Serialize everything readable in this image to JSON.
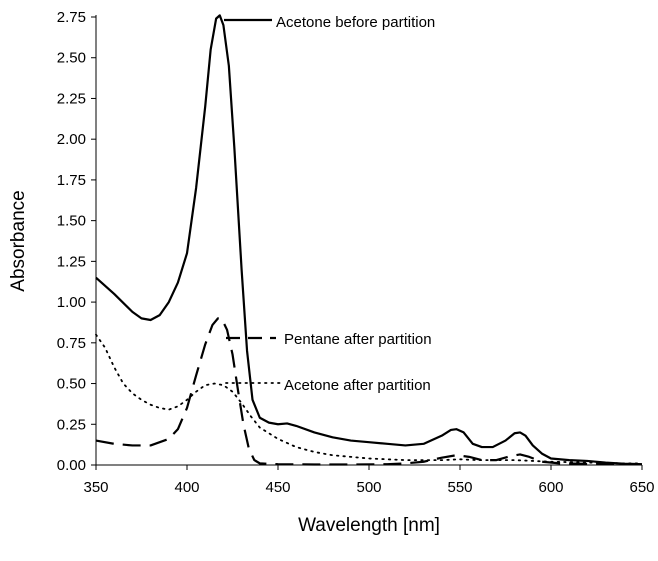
{
  "chart_data": {
    "type": "line",
    "xlabel": "Wavelength [nm]",
    "ylabel": "Absorbance",
    "xlim": [
      350,
      650
    ],
    "ylim": [
      0,
      2.75
    ],
    "x_ticks": [
      "350",
      "400",
      "450",
      "500",
      "550",
      "600",
      "650"
    ],
    "y_ticks": [
      "0.00",
      "0.25",
      "0.50",
      "0.75",
      "1.00",
      "1.25",
      "1.50",
      "1.75",
      "2.00",
      "2.25",
      "2.50",
      "2.75"
    ],
    "grid": false,
    "legend": "inline labels with leader lines",
    "series": [
      {
        "name": "Acetone before partition",
        "style": "solid",
        "color": "#000000",
        "points": [
          [
            350,
            1.15
          ],
          [
            360,
            1.05
          ],
          [
            370,
            0.94
          ],
          [
            375,
            0.9
          ],
          [
            380,
            0.89
          ],
          [
            385,
            0.92
          ],
          [
            390,
            1.0
          ],
          [
            395,
            1.12
          ],
          [
            400,
            1.3
          ],
          [
            405,
            1.7
          ],
          [
            410,
            2.2
          ],
          [
            413,
            2.55
          ],
          [
            416,
            2.74
          ],
          [
            418,
            2.76
          ],
          [
            420,
            2.7
          ],
          [
            423,
            2.45
          ],
          [
            426,
            1.95
          ],
          [
            430,
            1.2
          ],
          [
            433,
            0.7
          ],
          [
            436,
            0.4
          ],
          [
            440,
            0.29
          ],
          [
            445,
            0.26
          ],
          [
            450,
            0.25
          ],
          [
            455,
            0.255
          ],
          [
            460,
            0.24
          ],
          [
            470,
            0.2
          ],
          [
            480,
            0.17
          ],
          [
            490,
            0.15
          ],
          [
            500,
            0.14
          ],
          [
            510,
            0.13
          ],
          [
            520,
            0.12
          ],
          [
            530,
            0.13
          ],
          [
            540,
            0.18
          ],
          [
            545,
            0.215
          ],
          [
            548,
            0.22
          ],
          [
            552,
            0.2
          ],
          [
            557,
            0.13
          ],
          [
            562,
            0.11
          ],
          [
            568,
            0.11
          ],
          [
            575,
            0.15
          ],
          [
            580,
            0.195
          ],
          [
            583,
            0.2
          ],
          [
            586,
            0.18
          ],
          [
            590,
            0.12
          ],
          [
            595,
            0.07
          ],
          [
            600,
            0.04
          ],
          [
            610,
            0.03
          ],
          [
            620,
            0.025
          ],
          [
            630,
            0.015
          ],
          [
            640,
            0.008
          ],
          [
            650,
            0.005
          ]
        ]
      },
      {
        "name": "Pentane after partition",
        "style": "dashed",
        "color": "#000000",
        "points": [
          [
            350,
            0.15
          ],
          [
            360,
            0.13
          ],
          [
            370,
            0.12
          ],
          [
            380,
            0.12
          ],
          [
            390,
            0.16
          ],
          [
            395,
            0.22
          ],
          [
            400,
            0.35
          ],
          [
            405,
            0.55
          ],
          [
            410,
            0.74
          ],
          [
            414,
            0.86
          ],
          [
            417,
            0.9
          ],
          [
            419,
            0.9
          ],
          [
            422,
            0.83
          ],
          [
            425,
            0.68
          ],
          [
            428,
            0.46
          ],
          [
            431,
            0.25
          ],
          [
            434,
            0.1
          ],
          [
            437,
            0.03
          ],
          [
            440,
            0.01
          ],
          [
            450,
            0.005
          ],
          [
            470,
            0.003
          ],
          [
            490,
            0.003
          ],
          [
            510,
            0.005
          ],
          [
            520,
            0.01
          ],
          [
            530,
            0.02
          ],
          [
            540,
            0.045
          ],
          [
            548,
            0.06
          ],
          [
            555,
            0.05
          ],
          [
            562,
            0.03
          ],
          [
            570,
            0.03
          ],
          [
            578,
            0.055
          ],
          [
            583,
            0.065
          ],
          [
            588,
            0.05
          ],
          [
            595,
            0.02
          ],
          [
            605,
            0.01
          ],
          [
            620,
            0.007
          ],
          [
            640,
            0.005
          ],
          [
            650,
            0.004
          ]
        ]
      },
      {
        "name": "Acetone after partition",
        "style": "dotted",
        "color": "#000000",
        "points": [
          [
            350,
            0.8
          ],
          [
            355,
            0.72
          ],
          [
            360,
            0.6
          ],
          [
            365,
            0.5
          ],
          [
            370,
            0.44
          ],
          [
            375,
            0.4
          ],
          [
            380,
            0.37
          ],
          [
            385,
            0.35
          ],
          [
            390,
            0.34
          ],
          [
            395,
            0.36
          ],
          [
            400,
            0.4
          ],
          [
            405,
            0.45
          ],
          [
            410,
            0.49
          ],
          [
            415,
            0.5
          ],
          [
            420,
            0.49
          ],
          [
            425,
            0.45
          ],
          [
            430,
            0.38
          ],
          [
            435,
            0.3
          ],
          [
            440,
            0.23
          ],
          [
            450,
            0.16
          ],
          [
            460,
            0.11
          ],
          [
            470,
            0.08
          ],
          [
            480,
            0.06
          ],
          [
            490,
            0.05
          ],
          [
            500,
            0.04
          ],
          [
            520,
            0.03
          ],
          [
            540,
            0.03
          ],
          [
            550,
            0.035
          ],
          [
            560,
            0.03
          ],
          [
            580,
            0.03
          ],
          [
            600,
            0.02
          ],
          [
            620,
            0.015
          ],
          [
            640,
            0.01
          ],
          [
            650,
            0.01
          ]
        ]
      }
    ],
    "annotations": [
      {
        "text": "Acetone before partition",
        "series": 0
      },
      {
        "text": "Pentane after partition",
        "series": 1
      },
      {
        "text": "Acetone after partition",
        "series": 2
      }
    ]
  }
}
